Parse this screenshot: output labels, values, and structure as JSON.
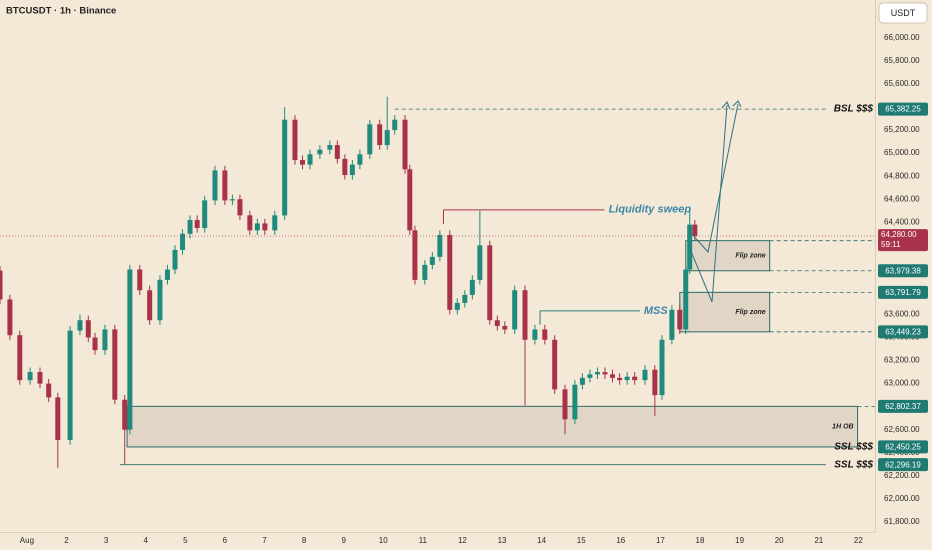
{
  "header": {
    "symbol": "BTCUSDT · 1h · Binance",
    "currency": "USDT"
  },
  "chart_data": {
    "type": "candlestick",
    "colors": {
      "up": "#1f8a7d",
      "down": "#a8324a"
    },
    "x": [
      0.32,
      0.57,
      0.82,
      1.08,
      1.33,
      1.55,
      1.78,
      2.09,
      2.34,
      2.55,
      2.72,
      2.97,
      3.22,
      3.47,
      3.6,
      3.85,
      4.1,
      4.36,
      4.55,
      4.74,
      4.93,
      5.12,
      5.3,
      5.49,
      5.75,
      6.0,
      6.19,
      6.38,
      6.63,
      6.82,
      7.01,
      7.26,
      7.51,
      7.77,
      7.96,
      8.15,
      8.4,
      8.65,
      8.84,
      9.03,
      9.22,
      9.41,
      9.66,
      9.91,
      10.1,
      10.29,
      10.55,
      10.67,
      10.8,
      11.05,
      11.24,
      11.43,
      11.68,
      11.87,
      12.06,
      12.25,
      12.44,
      12.69,
      12.88,
      13.07,
      13.32,
      13.58,
      13.83,
      14.08,
      14.33,
      14.59,
      14.84,
      15.03,
      15.22,
      15.41,
      15.6,
      15.79,
      15.97,
      16.16,
      16.35,
      16.61,
      16.86,
      17.04,
      17.29,
      17.49,
      17.64,
      17.74,
      17.87
    ],
    "open": [
      63980,
      63730,
      63420,
      63030,
      63100,
      63000,
      62880,
      62510,
      63460,
      63550,
      63400,
      63290,
      63470,
      62860,
      62600,
      63990,
      63810,
      63550,
      63900,
      63990,
      64160,
      64300,
      64420,
      64350,
      64590,
      64850,
      64590,
      64600,
      64460,
      64330,
      64390,
      64330,
      64460,
      65290,
      64940,
      64900,
      64990,
      65030,
      65070,
      64950,
      64810,
      64900,
      64990,
      65250,
      65070,
      65200,
      65290,
      64860,
      64330,
      63900,
      64030,
      64100,
      64290,
      63640,
      63700,
      63770,
      63900,
      64200,
      63550,
      63500,
      63470,
      63810,
      63380,
      63470,
      63380,
      62950,
      62690,
      62990,
      63050,
      63080,
      63100,
      63080,
      63050,
      63030,
      63060,
      63030,
      63120,
      62900,
      63380,
      63640,
      63470,
      63990,
      64380
    ],
    "high": [
      64020,
      63770,
      63460,
      63140,
      63140,
      63040,
      62920,
      63500,
      63600,
      63590,
      63440,
      63510,
      63510,
      62900,
      64030,
      64030,
      63850,
      63940,
      64030,
      64200,
      64340,
      64460,
      64460,
      64630,
      64890,
      64890,
      64640,
      64640,
      64500,
      64430,
      64430,
      64500,
      65400,
      65330,
      64980,
      65030,
      65070,
      65110,
      65110,
      64990,
      64940,
      65030,
      65290,
      65290,
      65490,
      65330,
      65330,
      64900,
      64370,
      64070,
      64140,
      64330,
      64330,
      63740,
      63810,
      63940,
      64500,
      64240,
      63590,
      63540,
      63850,
      63850,
      63510,
      63510,
      63420,
      62990,
      63030,
      63090,
      63120,
      63140,
      63140,
      63120,
      63090,
      63100,
      63100,
      63160,
      63160,
      63420,
      63680,
      63680,
      64030,
      64500,
      64420
    ],
    "low": [
      63690,
      63380,
      62990,
      62990,
      62960,
      62840,
      62270,
      62470,
      63420,
      63360,
      63250,
      63250,
      62820,
      62300,
      62560,
      63770,
      63510,
      63510,
      63860,
      63950,
      64120,
      64260,
      64310,
      64310,
      64550,
      64550,
      64550,
      64420,
      64290,
      64290,
      64290,
      64290,
      64420,
      64900,
      64860,
      64860,
      64950,
      64990,
      64910,
      64770,
      64770,
      64860,
      64950,
      65030,
      65030,
      65160,
      64820,
      64290,
      63860,
      63860,
      63990,
      64060,
      63600,
      63600,
      63660,
      63730,
      63860,
      63510,
      63460,
      63430,
      63430,
      62810,
      63340,
      63340,
      62910,
      62560,
      62650,
      62950,
      63010,
      63040,
      63040,
      63010,
      62990,
      62990,
      62990,
      62990,
      62720,
      62860,
      63340,
      63430,
      63430,
      63950,
      64240
    ],
    "close": [
      63730,
      63420,
      63030,
      63100,
      63000,
      62880,
      62510,
      63460,
      63550,
      63400,
      63290,
      63470,
      62860,
      62600,
      63990,
      63810,
      63550,
      63900,
      63990,
      64160,
      64300,
      64420,
      64350,
      64590,
      64850,
      64590,
      64600,
      64460,
      64330,
      64390,
      64330,
      64460,
      65290,
      64940,
      64900,
      64990,
      65030,
      65070,
      64950,
      64810,
      64900,
      64990,
      65250,
      65070,
      65200,
      65290,
      64860,
      64330,
      63900,
      64030,
      64100,
      64290,
      63640,
      63700,
      63770,
      63900,
      64200,
      63550,
      63500,
      63470,
      63810,
      63380,
      63470,
      63380,
      62950,
      62690,
      62990,
      63050,
      63080,
      63100,
      63080,
      63050,
      63030,
      63060,
      63030,
      63120,
      62900,
      63380,
      63640,
      63470,
      63990,
      64380,
      64280
    ],
    "xlim": [
      0.32,
      22.42
    ],
    "xticks": [
      {
        "value": 1,
        "label": "Aug"
      },
      2,
      3,
      4,
      5,
      6,
      7,
      8,
      9,
      10,
      11,
      12,
      13,
      14,
      15,
      16,
      17,
      18,
      19,
      20,
      21,
      22
    ],
    "ylim": [
      61712,
      66329
    ],
    "yticks": [
      {
        "value": 61800,
        "label": "61,800.00"
      },
      {
        "value": 62000,
        "label": "62,000.00"
      },
      {
        "value": 62200,
        "label": "62,200.00"
      },
      {
        "value": 62400,
        "label": "62,400.00"
      },
      {
        "value": 62600,
        "label": "62,600.00"
      },
      {
        "value": 62800,
        "label": "62,800.00"
      },
      {
        "value": 63000,
        "label": "63,000.00"
      },
      {
        "value": 63200,
        "label": "63,200.00"
      },
      {
        "value": 63400,
        "label": "63,400.00"
      },
      {
        "value": 63600,
        "label": "63,600.00"
      },
      {
        "value": 63800,
        "label": "63,800.00"
      },
      {
        "value": 64000,
        "label": "64,000.00"
      },
      {
        "value": 64200,
        "label": "64,200.00"
      },
      {
        "value": 64400,
        "label": "64,400.00"
      },
      {
        "value": 64600,
        "label": "64,600.00"
      },
      {
        "value": 64800,
        "label": "64,800.00"
      },
      {
        "value": 65000,
        "label": "65,000.00"
      },
      {
        "value": 65200,
        "label": "65,200.00"
      },
      {
        "value": 65400,
        "label": "65,400.00"
      },
      {
        "value": 65600,
        "label": "65,600.00"
      },
      {
        "value": 65800,
        "label": "65,800.00"
      },
      {
        "value": 66000,
        "label": "66,000.00"
      }
    ],
    "levels": [
      {
        "value": 65382.25,
        "label": "65,382.25",
        "text": "BSL $$$",
        "from": 10.29,
        "style": "dashed"
      },
      {
        "value": 64240.38,
        "label": "64,240.38",
        "from": 19.76,
        "style": "dashed"
      },
      {
        "value": 63979.38,
        "label": "63,979.38",
        "from": 19.76,
        "style": "dashed"
      },
      {
        "value": 63791.79,
        "label": "63,791.79",
        "from": 19.76,
        "style": "dashed"
      },
      {
        "value": 63449.23,
        "label": "63,449.23",
        "from": 19.76,
        "style": "dashed"
      },
      {
        "value": 62802.37,
        "label": "62,802.37",
        "from": 21.98,
        "style": "dashed"
      },
      {
        "value": 62450.25,
        "label": "62,450.25",
        "text": "SSL $$$",
        "from": 21.98,
        "style": "dashed"
      },
      {
        "value": 62296.19,
        "label": "62,296.19",
        "text": "SSL $$$",
        "from": 3.35,
        "style": "solid"
      }
    ],
    "current": {
      "value": 64280,
      "label": "64,280.00",
      "countdown": "59:11"
    },
    "zones": [
      {
        "label": "Flip zone",
        "top": 64240.38,
        "bottom": 63979.38,
        "from": 17.64,
        "to": 19.76
      },
      {
        "label": "Flip zone",
        "top": 63791.79,
        "bottom": 63449.23,
        "from": 17.49,
        "to": 19.76
      },
      {
        "label": "1H OB",
        "top": 62802.37,
        "bottom": 62450.25,
        "from": 3.53,
        "to": 21.98
      }
    ],
    "annotations": [
      {
        "text": "Liquidity sweep",
        "value": 64508,
        "from": 11.52,
        "to": 15.59,
        "color": "#a8324a",
        "text_color": "#3b86a8"
      },
      {
        "text": "MSS",
        "value": 63631,
        "from": 13.96,
        "to": 16.48,
        "color": "#2a7d78",
        "text_color": "#3b86a8"
      }
    ]
  }
}
